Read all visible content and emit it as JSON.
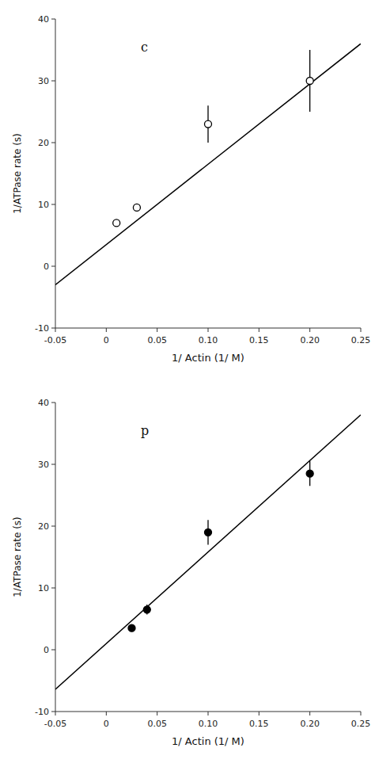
{
  "chart_data": [
    {
      "type": "scatter",
      "annotations": [
        "c"
      ],
      "xlabel": "1/  Actin   (1/  M)",
      "ylabel": "1/ATPase rate (s)",
      "xlim": [
        -0.05,
        0.25
      ],
      "ylim": [
        -10,
        40
      ],
      "xticks": [
        -0.05,
        0,
        0.05,
        {
          "value": 0.1,
          "label": "0.10"
        },
        0.15,
        {
          "value": 0.2,
          "label": "0.20"
        },
        0.25
      ],
      "yticks": [
        -10,
        0,
        10,
        20,
        30,
        40
      ],
      "series": [
        {
          "type": "line",
          "x": [
            -0.05,
            0.25
          ],
          "values": [
            -3.0,
            36.0
          ],
          "color": "black",
          "line_style": "solid"
        },
        {
          "type": "scatter",
          "x": [
            0.01,
            0.03,
            0.1,
            0.2
          ],
          "values": [
            7.0,
            9.5,
            23.0,
            30.0
          ],
          "yerr": [
            0,
            0,
            3.0,
            5.0
          ],
          "color": "black",
          "marker": "open-circle"
        }
      ]
    },
    {
      "type": "scatter",
      "annotations": [
        "p"
      ],
      "xlabel": "1/  Actin   (1/  M)",
      "ylabel": "1/ATPase rate (s)",
      "xlim": [
        -0.05,
        0.25
      ],
      "ylim": [
        -10,
        40
      ],
      "xticks": [
        -0.05,
        0,
        0.05,
        {
          "value": 0.1,
          "label": "0.10"
        },
        0.15,
        {
          "value": 0.2,
          "label": "0.20"
        },
        0.25
      ],
      "yticks": [
        -10,
        0,
        10,
        20,
        30,
        40
      ],
      "series": [
        {
          "type": "line",
          "x": [
            -0.05,
            0.25
          ],
          "values": [
            -6.4,
            38.0
          ],
          "color": "black",
          "line_style": "solid"
        },
        {
          "type": "scatter",
          "x": [
            0.025,
            0.04,
            0.1,
            0.2
          ],
          "values": [
            3.5,
            6.5,
            19.0,
            28.5
          ],
          "yerr": [
            0.5,
            0.8,
            2.0,
            2.0
          ],
          "color": "black",
          "marker": "circle"
        }
      ]
    }
  ]
}
